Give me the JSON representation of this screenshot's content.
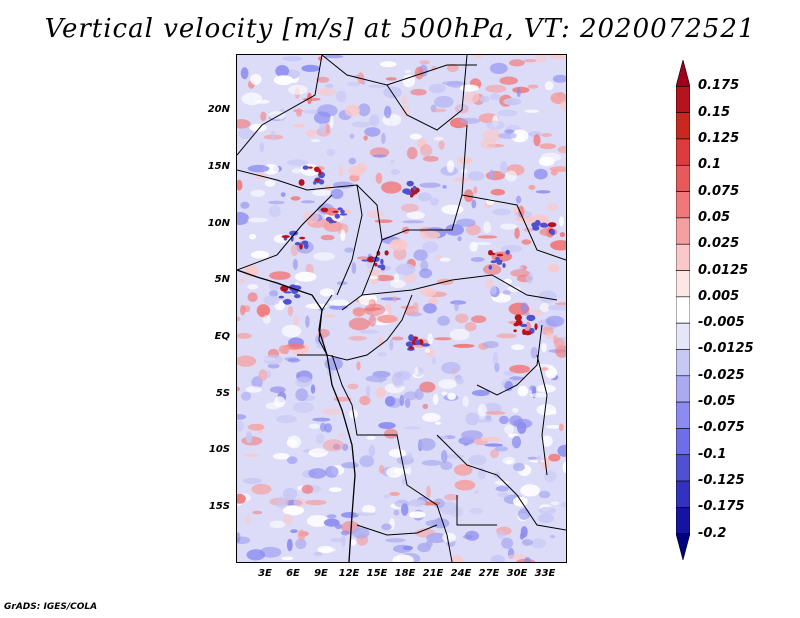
{
  "title": "Vertical velocity [m/s] at 500hPa, VT: 2020072521",
  "credit": "GrADS: IGES/COLA",
  "lat_labels": [
    "20N",
    "15N",
    "10N",
    "5N",
    "EQ",
    "5S",
    "10S",
    "15S"
  ],
  "lon_labels": [
    "3E",
    "6E",
    "9E",
    "12E",
    "15E",
    "18E",
    "21E",
    "24E",
    "27E",
    "30E",
    "33E"
  ],
  "colorbar": {
    "labels": [
      "0.175",
      "0.15",
      "0.125",
      "0.1",
      "0.075",
      "0.05",
      "0.025",
      "0.0125",
      "0.005",
      "-0.005",
      "-0.0125",
      "-0.025",
      "-0.05",
      "-0.075",
      "-0.1",
      "-0.125",
      "-0.175",
      "-0.2"
    ],
    "colors": [
      "#a0001e",
      "#b4141e",
      "#c8281e",
      "#dc3c3c",
      "#e65a5a",
      "#f07878",
      "#f5a0a0",
      "#fac8c8",
      "#fde6e6",
      "#ffffff",
      "#e6e6fa",
      "#c8c8f5",
      "#aaaaf0",
      "#8c8cf0",
      "#6e6ee6",
      "#5050d2",
      "#3232be",
      "#1414a0",
      "#000082"
    ]
  },
  "map": {
    "lat_range": [
      -20,
      24
    ],
    "lon_range": [
      0,
      35
    ],
    "field_colors": {
      "positive": "#f08080",
      "strong_positive": "#b4141e",
      "negative": "#a0a0f0",
      "background": "#e6e6fa"
    }
  }
}
